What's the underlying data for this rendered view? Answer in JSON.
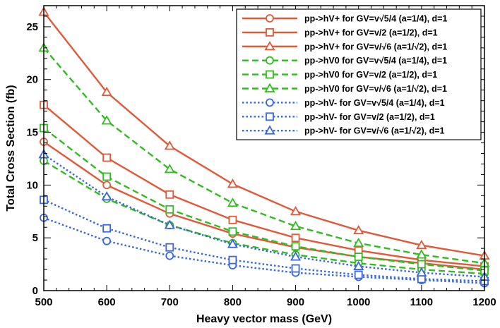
{
  "chart_data": {
    "type": "line",
    "xlabel": "Heavy vector mass (GeV)",
    "ylabel": "Total Cross Section (fb)",
    "xlim": [
      500,
      1200
    ],
    "ylim": [
      0,
      27
    ],
    "x_ticks": [
      "500",
      "600",
      "700",
      "800",
      "900",
      "1000",
      "1100",
      "1200"
    ],
    "y_ticks": [
      "0",
      "5",
      "10",
      "15",
      "20",
      "25"
    ],
    "grid": false,
    "legend_position": "top-right",
    "x": [
      500,
      600,
      700,
      800,
      900,
      1000,
      1100,
      1200
    ],
    "series": [
      {
        "name": "pp->hV+ for GV=v√5/4 (a=1/4), d=1",
        "color": "#e05a3a",
        "dash": "solid",
        "marker": "circle",
        "values": [
          14.1,
          10.0,
          7.3,
          5.4,
          4.1,
          3.2,
          2.6,
          2.0
        ]
      },
      {
        "name": "pp->hV+ for GV=v/2 (a=1/2), d=1",
        "color": "#e05a3a",
        "dash": "solid",
        "marker": "square",
        "values": [
          17.6,
          12.6,
          9.1,
          6.7,
          5.0,
          3.8,
          2.9,
          2.3
        ]
      },
      {
        "name": "pp->hV+ for GV=v/√6 (a=1/√2), d=1",
        "color": "#e05a3a",
        "dash": "solid",
        "marker": "triangle",
        "values": [
          26.4,
          18.8,
          13.7,
          10.1,
          7.5,
          5.7,
          4.3,
          3.3
        ]
      },
      {
        "name": "pp->hV0 for GV=v√5/4 (a=1/4), d=1",
        "color": "#33bb22",
        "dash": "dashed",
        "marker": "circle",
        "values": [
          12.3,
          8.7,
          6.2,
          4.5,
          3.4,
          2.6,
          2.0,
          1.6
        ]
      },
      {
        "name": "pp->hV0 for GV=v/2 (a=1/2), d=1",
        "color": "#33bb22",
        "dash": "dashed",
        "marker": "square",
        "values": [
          15.4,
          10.8,
          7.7,
          5.6,
          4.2,
          3.2,
          2.5,
          1.9
        ]
      },
      {
        "name": "pp->hV0 for GV=v/√6 (a=1/√2), d=1",
        "color": "#33bb22",
        "dash": "dashed",
        "marker": "triangle",
        "values": [
          23.0,
          16.1,
          11.5,
          8.3,
          6.1,
          4.5,
          3.4,
          2.6
        ]
      },
      {
        "name": "pp->hV- for GV=v√5/4 (a=1/4), d=1",
        "color": "#3a66dd",
        "dash": "dotted",
        "marker": "circle",
        "values": [
          6.9,
          4.7,
          3.3,
          2.4,
          1.7,
          1.3,
          1.0,
          0.7
        ]
      },
      {
        "name": "pp->hV- for GV=v/2 (a=1/2), d=1",
        "color": "#3a66dd",
        "dash": "dotted",
        "marker": "square",
        "values": [
          8.6,
          5.9,
          4.1,
          2.9,
          2.1,
          1.5,
          1.1,
          0.9
        ]
      },
      {
        "name": "pp->hV- for GV=v/√6 (a=1/√2), d=1",
        "color": "#3a66dd",
        "dash": "dotted",
        "marker": "triangle",
        "values": [
          12.9,
          8.9,
          6.2,
          4.4,
          3.2,
          2.3,
          1.7,
          1.3
        ]
      }
    ]
  }
}
